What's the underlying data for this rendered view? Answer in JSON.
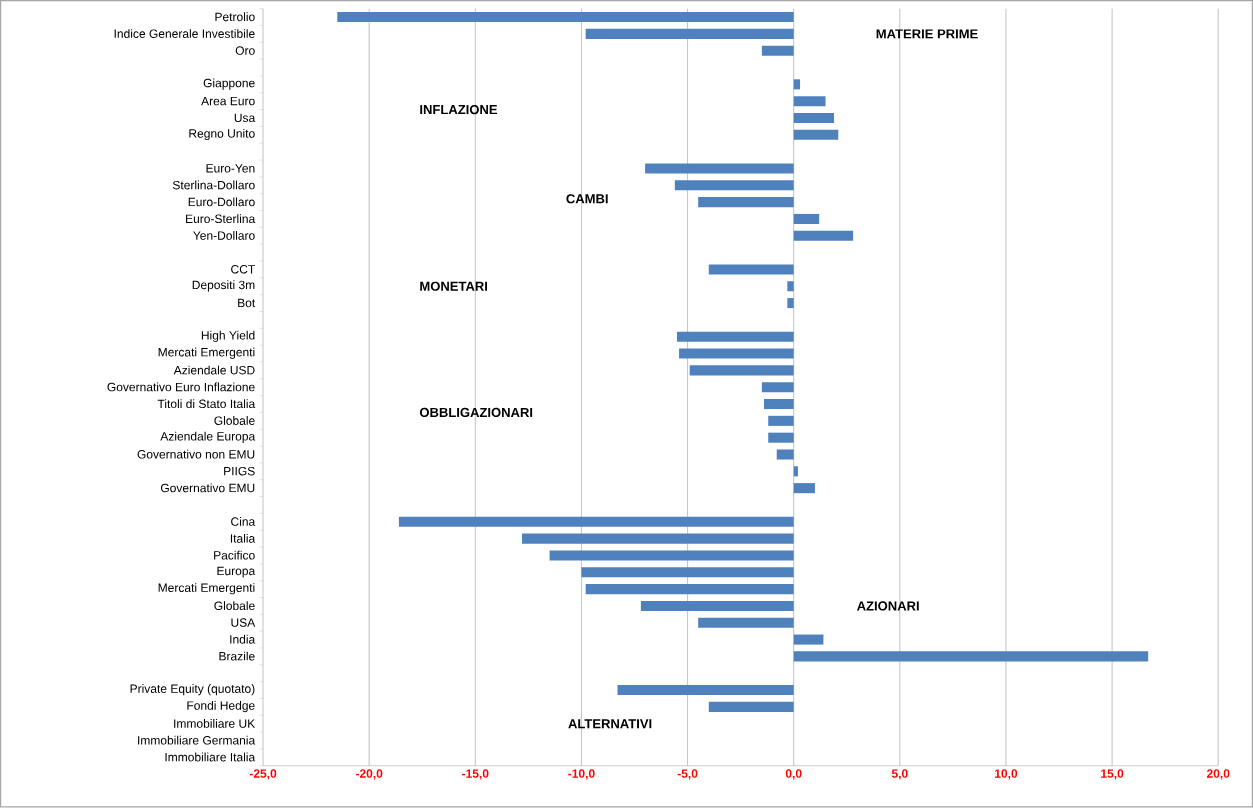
{
  "chart_data": {
    "type": "bar",
    "orientation": "horizontal",
    "categories": [
      "Petrolio",
      "Indice Generale Investibile",
      "Oro",
      null,
      "Giappone",
      "Area Euro",
      "Usa",
      "Regno Unito",
      null,
      "Euro-Yen",
      "Sterlina-Dollaro",
      "Euro-Dollaro",
      "Euro-Sterlina",
      "Yen-Dollaro",
      null,
      "CCT",
      "Depositi 3m",
      "Bot",
      null,
      "High Yield",
      "Mercati Emergenti",
      "Aziendale USD",
      "Governativo Euro Inflazione",
      "Titoli di Stato Italia",
      "Globale",
      "Aziendale Europa",
      "Governativo non EMU",
      "PIIGS",
      "Governativo EMU",
      null,
      "Cina",
      "Italia",
      "Pacifico",
      "Europa",
      "Mercati Emergenti",
      "Globale",
      "USA",
      "India",
      "Brazile",
      null,
      "Private Equity (quotato)",
      "Fondi Hedge",
      "Immobiliare UK",
      "Immobiliare Germania",
      "Immobiliare Italia"
    ],
    "values": [
      -21.5,
      -9.8,
      -1.5,
      null,
      0.3,
      1.5,
      1.9,
      2.1,
      null,
      -7.0,
      -5.6,
      -4.5,
      1.2,
      2.8,
      null,
      -4.0,
      -0.3,
      -0.3,
      null,
      -5.5,
      -5.4,
      -4.9,
      -1.5,
      -1.4,
      -1.2,
      -1.2,
      -0.8,
      0.2,
      1.0,
      null,
      -18.6,
      -12.8,
      -11.5,
      -10.0,
      -9.8,
      -7.2,
      -4.5,
      1.4,
      16.7,
      null,
      -8.3,
      -4.0,
      null,
      null,
      null
    ],
    "color": "#4f81bd",
    "xlim": [
      -25,
      20
    ],
    "xticks": [
      {
        "value": -25,
        "label": "-25,0"
      },
      {
        "value": -20,
        "label": "-20,0"
      },
      {
        "value": -15,
        "label": "-15,0"
      },
      {
        "value": -10,
        "label": "-10,0"
      },
      {
        "value": -5,
        "label": "-5,0"
      },
      {
        "value": 0,
        "label": "0,0"
      },
      {
        "value": 5,
        "label": "5,0"
      },
      {
        "value": 10,
        "label": "10,0"
      },
      {
        "value": 15,
        "label": "15,0"
      },
      {
        "value": 20,
        "label": "20,0"
      }
    ],
    "grid": "x",
    "annotations": [
      "MATERIE PRIME",
      "INFLAZIONE",
      "CAMBI",
      "MONETARI",
      "OBBLIGAZIONARI",
      "AZIONARI",
      "ALTERNATIVI"
    ]
  }
}
